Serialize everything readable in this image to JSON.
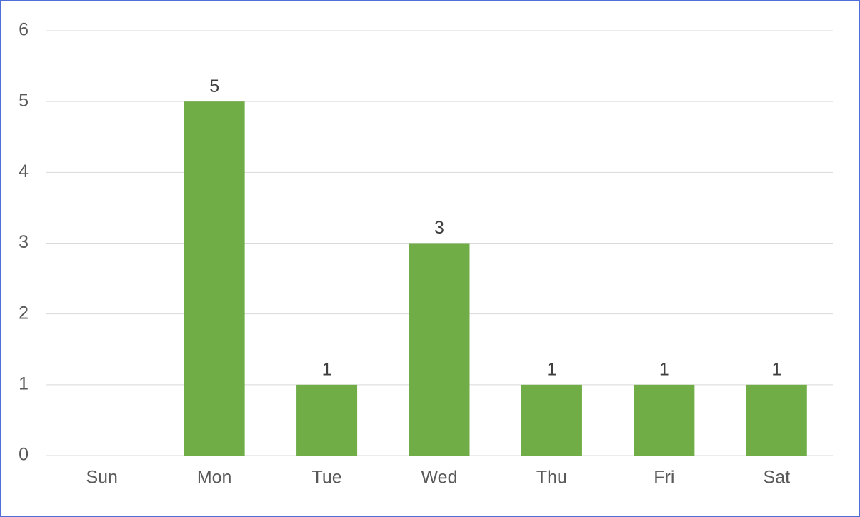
{
  "chart_data": {
    "type": "bar",
    "categories": [
      "Sun",
      "Mon",
      "Tue",
      "Wed",
      "Thu",
      "Fri",
      "Sat"
    ],
    "values": [
      null,
      5,
      1,
      3,
      1,
      1,
      1
    ],
    "color": "#70ad47",
    "ylim": [
      0,
      6
    ],
    "yticks": [
      0,
      1,
      2,
      3,
      4,
      5,
      6
    ],
    "grid": true,
    "data_labels": true
  }
}
